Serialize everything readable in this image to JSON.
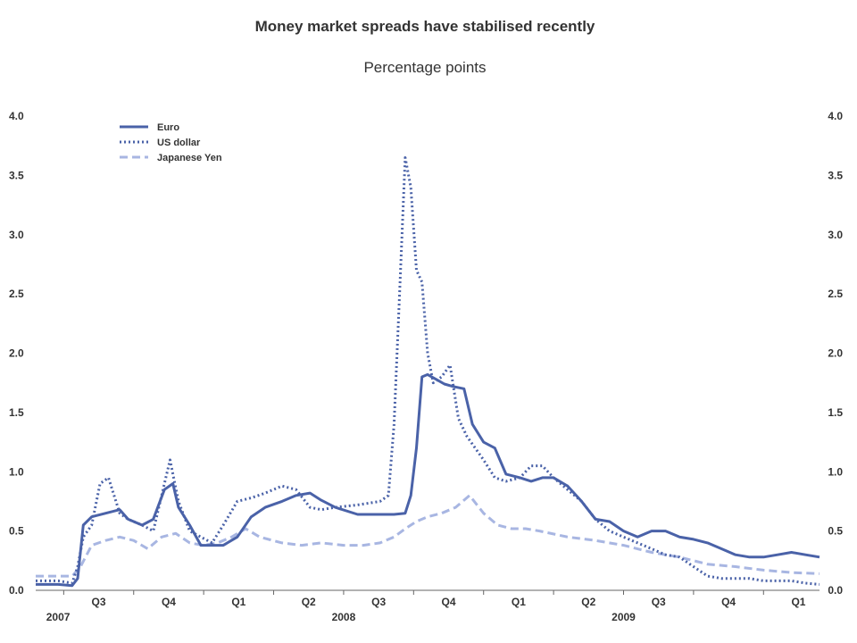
{
  "chart_data": {
    "type": "line",
    "title": "Money market spreads have stabilised recently",
    "subtitle": "Percentage points",
    "ylim": [
      0,
      4.0
    ],
    "y_ticks": [
      "0.0",
      "0.5",
      "1.0",
      "1.5",
      "2.0",
      "2.5",
      "3.0",
      "3.5",
      "4.0"
    ],
    "x_range": [
      2007.4,
      2010.2
    ],
    "quarter_labels": [
      {
        "label": "Q3",
        "x": 2007.625
      },
      {
        "label": "Q4",
        "x": 2007.875
      },
      {
        "label": "Q1",
        "x": 2008.125
      },
      {
        "label": "Q2",
        "x": 2008.375
      },
      {
        "label": "Q3",
        "x": 2008.625
      },
      {
        "label": "Q4",
        "x": 2008.875
      },
      {
        "label": "Q1",
        "x": 2009.125
      },
      {
        "label": "Q2",
        "x": 2009.375
      },
      {
        "label": "Q3",
        "x": 2009.625
      },
      {
        "label": "Q4",
        "x": 2009.875
      },
      {
        "label": "Q1",
        "x": 2010.125
      }
    ],
    "year_labels": [
      {
        "label": "2007",
        "x": 2007.48
      },
      {
        "label": "2008",
        "x": 2008.5
      },
      {
        "label": "2009",
        "x": 2009.5
      }
    ],
    "legend_position": "top-left",
    "grid": false,
    "series": [
      {
        "name": "Euro",
        "style": "solid",
        "color": "#4a62a8",
        "x": [
          2007.4,
          2007.48,
          2007.53,
          2007.55,
          2007.57,
          2007.6,
          2007.65,
          2007.7,
          2007.73,
          2007.78,
          2007.82,
          2007.86,
          2007.89,
          2007.91,
          2007.95,
          2007.99,
          2008.03,
          2008.07,
          2008.12,
          2008.17,
          2008.22,
          2008.28,
          2008.33,
          2008.38,
          2008.42,
          2008.47,
          2008.55,
          2008.63,
          2008.68,
          2008.72,
          2008.74,
          2008.76,
          2008.78,
          2008.8,
          2008.83,
          2008.86,
          2008.89,
          2008.93,
          2008.96,
          2009.0,
          2009.04,
          2009.08,
          2009.13,
          2009.17,
          2009.21,
          2009.25,
          2009.3,
          2009.35,
          2009.4,
          2009.45,
          2009.5,
          2009.55,
          2009.6,
          2009.65,
          2009.7,
          2009.75,
          2009.8,
          2009.85,
          2009.9,
          2009.95,
          2010.0,
          2010.05,
          2010.1,
          2010.15,
          2010.2
        ],
        "y": [
          0.05,
          0.05,
          0.04,
          0.1,
          0.55,
          0.62,
          0.65,
          0.68,
          0.6,
          0.55,
          0.6,
          0.85,
          0.9,
          0.7,
          0.55,
          0.38,
          0.38,
          0.38,
          0.45,
          0.62,
          0.7,
          0.75,
          0.8,
          0.82,
          0.76,
          0.7,
          0.64,
          0.64,
          0.64,
          0.65,
          0.8,
          1.2,
          1.8,
          1.82,
          1.78,
          1.74,
          1.72,
          1.7,
          1.4,
          1.25,
          1.2,
          0.98,
          0.95,
          0.92,
          0.95,
          0.95,
          0.88,
          0.75,
          0.6,
          0.58,
          0.5,
          0.45,
          0.5,
          0.5,
          0.45,
          0.43,
          0.4,
          0.35,
          0.3,
          0.28,
          0.28,
          0.3,
          0.32,
          0.3,
          0.28
        ]
      },
      {
        "name": "US dollar",
        "style": "dotted",
        "color": "#4a62a8",
        "x": [
          2007.4,
          2007.48,
          2007.53,
          2007.55,
          2007.57,
          2007.6,
          2007.63,
          2007.66,
          2007.7,
          2007.73,
          2007.78,
          2007.82,
          2007.86,
          2007.88,
          2007.91,
          2007.95,
          2007.99,
          2008.03,
          2008.07,
          2008.12,
          2008.17,
          2008.22,
          2008.28,
          2008.33,
          2008.38,
          2008.42,
          2008.47,
          2008.55,
          2008.63,
          2008.66,
          2008.68,
          2008.7,
          2008.72,
          2008.74,
          2008.76,
          2008.78,
          2008.8,
          2008.82,
          2008.85,
          2008.88,
          2008.91,
          2008.94,
          2008.97,
          2009.0,
          2009.04,
          2009.08,
          2009.13,
          2009.17,
          2009.21,
          2009.25,
          2009.3,
          2009.35,
          2009.4,
          2009.45,
          2009.5,
          2009.55,
          2009.6,
          2009.65,
          2009.7,
          2009.75,
          2009.8,
          2009.85,
          2009.9,
          2009.95,
          2010.0,
          2010.05,
          2010.1,
          2010.15,
          2010.2
        ],
        "y": [
          0.08,
          0.08,
          0.06,
          0.2,
          0.45,
          0.55,
          0.9,
          0.95,
          0.65,
          0.6,
          0.55,
          0.5,
          0.9,
          1.1,
          0.75,
          0.5,
          0.45,
          0.4,
          0.55,
          0.75,
          0.78,
          0.82,
          0.88,
          0.85,
          0.7,
          0.68,
          0.7,
          0.72,
          0.75,
          0.8,
          1.4,
          2.5,
          3.65,
          3.4,
          2.7,
          2.6,
          2.0,
          1.75,
          1.8,
          1.9,
          1.45,
          1.3,
          1.2,
          1.1,
          0.95,
          0.92,
          0.95,
          1.05,
          1.05,
          0.95,
          0.85,
          0.75,
          0.6,
          0.5,
          0.45,
          0.4,
          0.35,
          0.3,
          0.28,
          0.2,
          0.12,
          0.1,
          0.1,
          0.1,
          0.08,
          0.08,
          0.08,
          0.06,
          0.05
        ]
      },
      {
        "name": "Japanese Yen",
        "style": "dashed",
        "color": "#a8b6e2",
        "x": [
          2007.4,
          2007.48,
          2007.53,
          2007.56,
          2007.6,
          2007.65,
          2007.7,
          2007.75,
          2007.8,
          2007.85,
          2007.9,
          2007.95,
          2008.0,
          2008.05,
          2008.1,
          2008.15,
          2008.2,
          2008.28,
          2008.35,
          2008.42,
          2008.5,
          2008.57,
          2008.63,
          2008.68,
          2008.72,
          2008.76,
          2008.8,
          2008.85,
          2008.9,
          2008.95,
          2009.0,
          2009.05,
          2009.1,
          2009.15,
          2009.2,
          2009.3,
          2009.4,
          2009.5,
          2009.6,
          2009.7,
          2009.8,
          2009.9,
          2010.0,
          2010.1,
          2010.2
        ],
        "y": [
          0.12,
          0.12,
          0.12,
          0.2,
          0.38,
          0.42,
          0.45,
          0.42,
          0.35,
          0.45,
          0.48,
          0.4,
          0.38,
          0.4,
          0.45,
          0.52,
          0.45,
          0.4,
          0.38,
          0.4,
          0.38,
          0.38,
          0.4,
          0.45,
          0.52,
          0.58,
          0.62,
          0.65,
          0.7,
          0.8,
          0.65,
          0.55,
          0.52,
          0.52,
          0.5,
          0.45,
          0.42,
          0.38,
          0.32,
          0.28,
          0.22,
          0.2,
          0.17,
          0.15,
          0.14
        ]
      }
    ]
  }
}
